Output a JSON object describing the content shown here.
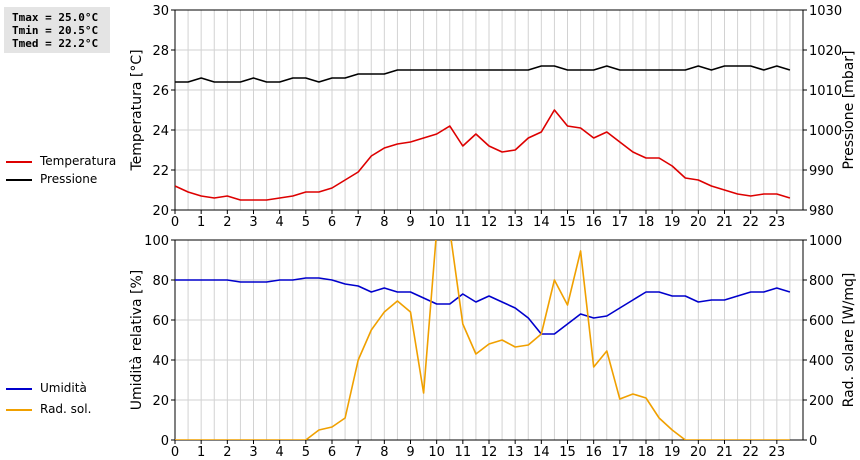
{
  "stats": {
    "tmax": "Tmax = 25.0°C",
    "tmin": "Tmin = 20.5°C",
    "tmed": "Tmed = 22.2°C"
  },
  "legend_top": [
    {
      "label": "Temperatura",
      "color": "#dd0000"
    },
    {
      "label": "Pressione",
      "color": "#000000"
    }
  ],
  "legend_bottom": [
    {
      "label": "Umidità",
      "color": "#0000cc"
    },
    {
      "label": "Rad. sol.",
      "color": "#f0a000"
    }
  ],
  "chart_data": [
    {
      "type": "line",
      "ylabel": "Temperatura [°C]",
      "ylabel_right": "Pressione [mbar]",
      "xlim": [
        0,
        24
      ],
      "ylim": [
        20,
        30
      ],
      "ylim_right": [
        980,
        1030
      ],
      "x_ticks": [
        "0",
        "1",
        "2",
        "3",
        "4",
        "5",
        "6",
        "7",
        "8",
        "9",
        "10",
        "11",
        "12",
        "13",
        "14",
        "15",
        "16",
        "17",
        "18",
        "19",
        "20",
        "21",
        "22",
        "23"
      ],
      "y_ticks": [
        "20",
        "22",
        "24",
        "26",
        "28",
        "30"
      ],
      "y_ticks_right": [
        "980",
        "990",
        "1000",
        "1010",
        "1020",
        "1030"
      ],
      "grid": true,
      "series": [
        {
          "name": "Temperatura",
          "axis": "left",
          "color": "#dd0000",
          "x": [
            0,
            0.5,
            1,
            1.5,
            2,
            2.5,
            3,
            3.5,
            4,
            4.5,
            5,
            5.5,
            6,
            6.5,
            7,
            7.5,
            8,
            8.5,
            9,
            9.5,
            10,
            10.5,
            11,
            11.5,
            12,
            12.5,
            13,
            13.5,
            14,
            14.5,
            15,
            15.5,
            16,
            16.5,
            17,
            17.5,
            18,
            18.5,
            19,
            19.5,
            20,
            20.5,
            21,
            21.5,
            22,
            22.5,
            23,
            23.5
          ],
          "y": [
            21.2,
            20.9,
            20.7,
            20.6,
            20.7,
            20.5,
            20.5,
            20.5,
            20.6,
            20.7,
            20.9,
            20.9,
            21.1,
            21.5,
            21.9,
            22.7,
            23.1,
            23.3,
            23.4,
            23.6,
            23.8,
            24.2,
            23.2,
            23.8,
            23.2,
            22.9,
            23.0,
            23.6,
            23.9,
            25.0,
            24.2,
            24.1,
            23.6,
            23.9,
            23.4,
            22.9,
            22.6,
            22.6,
            22.2,
            21.6,
            21.5,
            21.2,
            21.0,
            20.8,
            20.7,
            20.8,
            20.8,
            20.6
          ]
        },
        {
          "name": "Pressione",
          "axis": "right",
          "color": "#000000",
          "x": [
            0,
            0.5,
            1,
            1.5,
            2,
            2.5,
            3,
            3.5,
            4,
            4.5,
            5,
            5.5,
            6,
            6.5,
            7,
            7.5,
            8,
            8.5,
            9,
            9.5,
            10,
            10.5,
            11,
            11.5,
            12,
            12.5,
            13,
            13.5,
            14,
            14.5,
            15,
            15.5,
            16,
            16.5,
            17,
            17.5,
            18,
            18.5,
            19,
            19.5,
            20,
            20.5,
            21,
            21.5,
            22,
            22.5,
            23,
            23.5
          ],
          "y": [
            1012,
            1012,
            1013,
            1012,
            1012,
            1012,
            1013,
            1012,
            1012,
            1013,
            1013,
            1012,
            1013,
            1013,
            1014,
            1014,
            1014,
            1015,
            1015,
            1015,
            1015,
            1015,
            1015,
            1015,
            1015,
            1015,
            1015,
            1015,
            1016,
            1016,
            1015,
            1015,
            1015,
            1016,
            1015,
            1015,
            1015,
            1015,
            1015,
            1015,
            1016,
            1015,
            1016,
            1016,
            1016,
            1015,
            1016,
            1015
          ]
        }
      ]
    },
    {
      "type": "line",
      "ylabel": "Umidità relativa [%]",
      "ylabel_right": "Rad. solare [W/mq]",
      "xlim": [
        0,
        24
      ],
      "ylim": [
        0,
        100
      ],
      "ylim_right": [
        0,
        1000
      ],
      "x_ticks": [
        "0",
        "1",
        "2",
        "3",
        "4",
        "5",
        "6",
        "7",
        "8",
        "9",
        "10",
        "11",
        "12",
        "13",
        "14",
        "15",
        "16",
        "17",
        "18",
        "19",
        "20",
        "21",
        "22",
        "23"
      ],
      "y_ticks": [
        "0",
        "20",
        "40",
        "60",
        "80",
        "100"
      ],
      "y_ticks_right": [
        "0",
        "200",
        "400",
        "600",
        "800",
        "1000"
      ],
      "grid": true,
      "series": [
        {
          "name": "Umidità",
          "axis": "left",
          "color": "#0000cc",
          "x": [
            0,
            0.5,
            1,
            1.5,
            2,
            2.5,
            3,
            3.5,
            4,
            4.5,
            5,
            5.5,
            6,
            6.5,
            7,
            7.5,
            8,
            8.5,
            9,
            9.5,
            10,
            10.5,
            11,
            11.5,
            12,
            12.5,
            13,
            13.5,
            14,
            14.5,
            15,
            15.5,
            16,
            16.5,
            17,
            17.5,
            18,
            18.5,
            19,
            19.5,
            20,
            20.5,
            21,
            21.5,
            22,
            22.5,
            23,
            23.5
          ],
          "y": [
            80,
            80,
            80,
            80,
            80,
            79,
            79,
            79,
            80,
            80,
            81,
            81,
            80,
            78,
            77,
            74,
            76,
            74,
            74,
            71,
            68,
            68,
            73,
            69,
            72,
            69,
            66,
            61,
            53,
            53,
            58,
            63,
            61,
            62,
            66,
            70,
            74,
            74,
            72,
            72,
            69,
            70,
            70,
            72,
            74,
            74,
            76,
            74
          ]
        },
        {
          "name": "Rad. sol.",
          "axis": "right",
          "color": "#f0a000",
          "x": [
            0,
            0.5,
            1,
            1.5,
            2,
            2.5,
            3,
            3.5,
            4,
            4.5,
            5,
            5.5,
            6,
            6.5,
            7,
            7.5,
            8,
            8.5,
            9,
            9.5,
            10,
            10.5,
            11,
            11.5,
            12,
            12.5,
            13,
            13.5,
            14,
            14.5,
            15,
            15.5,
            16,
            16.5,
            17,
            17.5,
            18,
            18.5,
            19,
            19.5,
            20,
            20.5,
            21,
            21.5,
            22,
            22.5,
            23,
            23.5
          ],
          "y": [
            0,
            0,
            0,
            0,
            0,
            0,
            0,
            0,
            0,
            0,
            0,
            50,
            65,
            110,
            400,
            550,
            640,
            695,
            640,
            235,
            1050,
            1050,
            580,
            430,
            480,
            500,
            465,
            475,
            530,
            800,
            675,
            945,
            365,
            445,
            205,
            230,
            210,
            110,
            50,
            0,
            0,
            0,
            0,
            0,
            0,
            0,
            0,
            0
          ]
        }
      ]
    }
  ]
}
